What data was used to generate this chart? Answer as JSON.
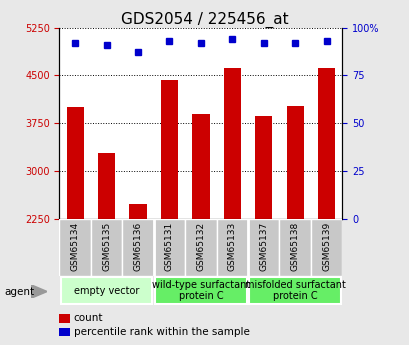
{
  "title": "GDS2054 / 225456_at",
  "samples": [
    "GSM65134",
    "GSM65135",
    "GSM65136",
    "GSM65131",
    "GSM65132",
    "GSM65133",
    "GSM65137",
    "GSM65138",
    "GSM65139"
  ],
  "counts": [
    4000,
    3280,
    2480,
    4430,
    3900,
    4620,
    3870,
    4020,
    4620
  ],
  "percentiles": [
    92,
    91,
    87,
    93,
    92,
    94,
    92,
    92,
    93
  ],
  "ylim_left": [
    2250,
    5250
  ],
  "ylim_right": [
    0,
    100
  ],
  "yticks_left": [
    2250,
    3000,
    3750,
    4500,
    5250
  ],
  "yticks_right": [
    0,
    25,
    50,
    75,
    100
  ],
  "ytick_labels_right": [
    "0",
    "25",
    "50",
    "75",
    "100%"
  ],
  "bar_color": "#cc0000",
  "dot_color": "#0000cc",
  "plot_bg": "#ffffff",
  "fig_bg": "#e8e8e8",
  "sample_row_color": "#c8c8c8",
  "group_colors": [
    "#ccffcc",
    "#66ee66",
    "#66ee66"
  ],
  "group_labels": [
    "empty vector",
    "wild-type surfactant\nprotein C",
    "misfolded surfactant\nprotein C"
  ],
  "group_starts": [
    0,
    3,
    6
  ],
  "group_ends": [
    3,
    6,
    9
  ],
  "agent_label": "agent",
  "legend_count_label": "count",
  "legend_pct_label": "percentile rank within the sample",
  "title_fontsize": 11,
  "tick_label_fontsize": 7,
  "sample_fontsize": 6.5,
  "group_fontsize": 7,
  "legend_fontsize": 7.5,
  "left_tick_color": "#cc0000",
  "right_tick_color": "#0000cc"
}
